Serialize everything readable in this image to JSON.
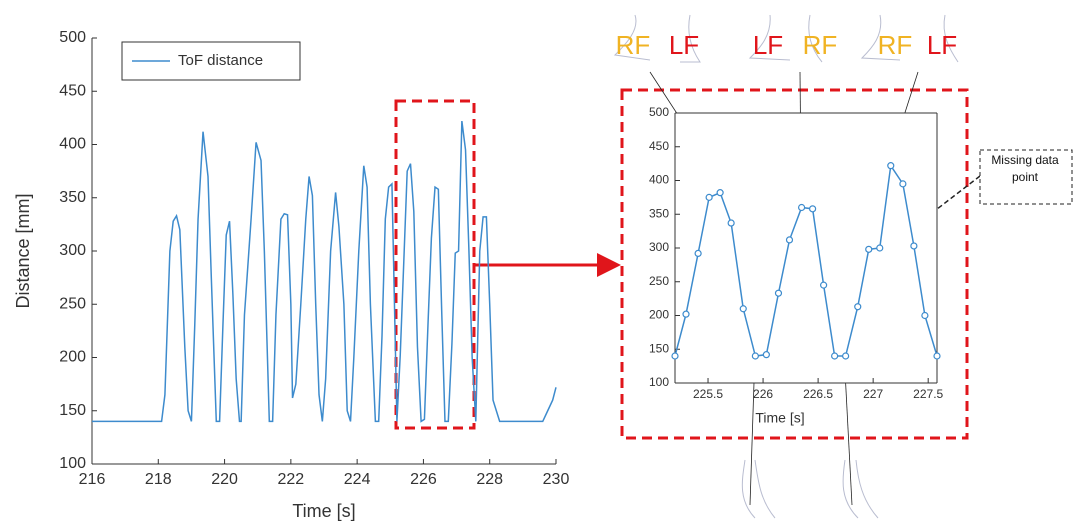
{
  "chart_data": [
    {
      "type": "line",
      "xlabel": "Time [s]",
      "ylabel": "Distance [mm]",
      "xlim": [
        216,
        230
      ],
      "ylim": [
        100,
        500
      ],
      "xticks": [
        216,
        218,
        220,
        222,
        224,
        226,
        228,
        230
      ],
      "yticks": [
        100,
        150,
        200,
        250,
        300,
        350,
        400,
        450,
        500
      ],
      "legend": "upper left",
      "box": false,
      "markers": false,
      "series": [
        {
          "name": "ToF distance",
          "color": "#3d8bcd",
          "x": [
            216,
            218.1,
            218.2,
            218.35,
            218.45,
            218.55,
            218.65,
            218.8,
            218.9,
            219.0,
            219.1,
            219.2,
            219.35,
            219.5,
            219.6,
            219.75,
            219.85,
            219.95,
            220.05,
            220.15,
            220.25,
            220.35,
            220.45,
            220.5,
            220.6,
            220.8,
            220.95,
            221.1,
            221.2,
            221.35,
            221.45,
            221.55,
            221.7,
            221.8,
            221.9,
            222.0,
            222.05,
            222.15,
            222.3,
            222.45,
            222.55,
            222.65,
            222.75,
            222.85,
            222.95,
            223.05,
            223.2,
            223.35,
            223.45,
            223.6,
            223.7,
            223.8,
            223.9,
            224.05,
            224.2,
            224.3,
            224.4,
            224.55,
            224.65,
            224.75,
            224.85,
            224.95,
            225.05,
            225.2,
            225.3,
            225.41,
            225.51,
            225.61,
            225.71,
            225.82,
            225.93,
            226.03,
            226.14,
            226.24,
            226.35,
            226.45,
            226.55,
            226.65,
            226.75,
            226.86,
            226.96,
            227.06,
            227.16,
            227.27,
            227.37,
            227.47,
            227.58,
            227.7,
            227.8,
            227.9,
            228.0,
            228.1,
            228.2,
            228.3,
            229.6,
            229.75,
            229.9,
            230
          ],
          "values": [
            140,
            140,
            165,
            300,
            328,
            333,
            320,
            210,
            150,
            140,
            230,
            330,
            412,
            370,
            275,
            140,
            140,
            230,
            315,
            328,
            260,
            180,
            140,
            140,
            240,
            330,
            402,
            385,
            300,
            140,
            140,
            240,
            330,
            335,
            334,
            250,
            162,
            175,
            250,
            330,
            370,
            352,
            250,
            165,
            140,
            180,
            300,
            355,
            323,
            250,
            150,
            140,
            200,
            300,
            380,
            360,
            250,
            140,
            140,
            220,
            330,
            360,
            363,
            140,
            202,
            292,
            375,
            382,
            337,
            210,
            140,
            142,
            233,
            312,
            360,
            358,
            245,
            140,
            140,
            213,
            298,
            300,
            422,
            395,
            303,
            200,
            140,
            300,
            332,
            332,
            250,
            160,
            150,
            140,
            140,
            150,
            160,
            172
          ]
        }
      ]
    },
    {
      "type": "line",
      "xlabel": "Time [s]",
      "xlim": [
        225.2,
        227.58
      ],
      "ylim": [
        100,
        500
      ],
      "xticks": [
        225.5,
        226,
        226.5,
        227,
        227.5
      ],
      "yticks": [
        100,
        150,
        200,
        250,
        300,
        350,
        400,
        450,
        500
      ],
      "box": true,
      "markers": true,
      "series": [
        {
          "color": "#3d8bcd",
          "x": [
            225.2,
            225.3,
            225.41,
            225.51,
            225.61,
            225.71,
            225.82,
            225.93,
            226.03,
            226.14,
            226.24,
            226.35,
            226.45,
            226.55,
            226.65,
            226.75,
            226.86,
            226.96,
            227.06,
            227.16,
            227.27,
            227.37,
            227.47,
            227.58
          ],
          "values": [
            140,
            202,
            292,
            375,
            382,
            337,
            210,
            140,
            142,
            233,
            312,
            360,
            358,
            245,
            140,
            140,
            213,
            298,
            300,
            422,
            395,
            303,
            200,
            140
          ]
        }
      ],
      "gait_labels": [
        {
          "text": "RF",
          "color": "#f0b323"
        },
        {
          "text": "LF",
          "color": "#e0151b"
        },
        {
          "text": "LF",
          "color": "#e0151b"
        },
        {
          "text": "RF",
          "color": "#f0b323"
        },
        {
          "text": "RF",
          "color": "#f0b323"
        },
        {
          "text": "LF",
          "color": "#e0151b"
        }
      ],
      "note": "Missing data point"
    }
  ]
}
